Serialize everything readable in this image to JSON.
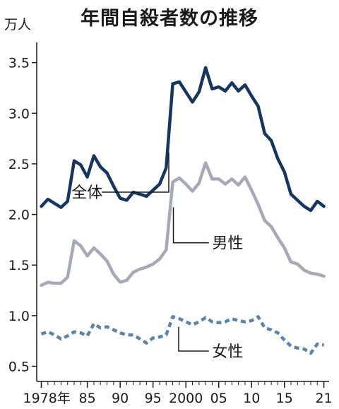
{
  "chart_data": {
    "type": "line",
    "title": "年間自殺者数の推移",
    "ylabel": "万人",
    "xlabel": "",
    "ylim": [
      0.35,
      3.7
    ],
    "xlim": [
      1977.3,
      2021.8
    ],
    "y_ticks": [
      0.5,
      1.0,
      1.5,
      2.0,
      2.5,
      3.0,
      3.5
    ],
    "y_tick_labels": [
      "0.5",
      "1.0",
      "1.5",
      "2.0",
      "2.5",
      "3.0",
      "3.5"
    ],
    "x_ticks": [
      1978,
      1985,
      1990,
      1995,
      2000,
      2005,
      2010,
      2015,
      2021
    ],
    "x_tick_labels": [
      "1978年",
      "85",
      "90",
      "95",
      "2000",
      "05",
      "10",
      "15",
      "21"
    ],
    "x": [
      1978,
      1979,
      1980,
      1981,
      1982,
      1983,
      1984,
      1985,
      1986,
      1987,
      1988,
      1989,
      1990,
      1991,
      1992,
      1993,
      1994,
      1995,
      1996,
      1997,
      1998,
      1999,
      2000,
      2001,
      2002,
      2003,
      2004,
      2005,
      2006,
      2007,
      2008,
      2009,
      2010,
      2011,
      2012,
      2013,
      2014,
      2015,
      2016,
      2017,
      2018,
      2019,
      2020,
      2021
    ],
    "series": [
      {
        "name": "全体",
        "color": "#16365f",
        "style": "solid",
        "values": [
          2.08,
          2.15,
          2.11,
          2.07,
          2.13,
          2.53,
          2.49,
          2.37,
          2.58,
          2.47,
          2.41,
          2.28,
          2.16,
          2.14,
          2.22,
          2.2,
          2.18,
          2.24,
          2.3,
          2.46,
          3.29,
          3.31,
          3.21,
          3.11,
          3.21,
          3.45,
          3.24,
          3.26,
          3.22,
          3.3,
          3.22,
          3.28,
          3.17,
          3.07,
          2.8,
          2.73,
          2.55,
          2.42,
          2.2,
          2.14,
          2.08,
          2.04,
          2.13,
          2.08
        ]
      },
      {
        "name": "男性",
        "color": "#a8a9b8",
        "style": "solid",
        "values": [
          1.3,
          1.33,
          1.32,
          1.32,
          1.38,
          1.74,
          1.69,
          1.59,
          1.67,
          1.61,
          1.54,
          1.41,
          1.33,
          1.35,
          1.43,
          1.46,
          1.48,
          1.51,
          1.56,
          1.65,
          2.32,
          2.36,
          2.3,
          2.23,
          2.31,
          2.51,
          2.35,
          2.35,
          2.3,
          2.35,
          2.29,
          2.37,
          2.24,
          2.1,
          1.94,
          1.88,
          1.77,
          1.67,
          1.53,
          1.51,
          1.45,
          1.42,
          1.41,
          1.39
        ]
      },
      {
        "name": "女性",
        "color": "#5b84a7",
        "style": "dashed",
        "values": [
          0.82,
          0.84,
          0.81,
          0.77,
          0.8,
          0.84,
          0.83,
          0.8,
          0.92,
          0.88,
          0.89,
          0.86,
          0.83,
          0.81,
          0.81,
          0.77,
          0.73,
          0.78,
          0.79,
          0.81,
          0.99,
          0.97,
          0.94,
          0.91,
          0.94,
          0.98,
          0.94,
          0.93,
          0.94,
          0.97,
          0.95,
          0.94,
          0.95,
          0.99,
          0.88,
          0.86,
          0.83,
          0.76,
          0.7,
          0.68,
          0.67,
          0.63,
          0.72,
          0.71
        ]
      }
    ],
    "annotations": [
      {
        "text": "全体",
        "series": "全体"
      },
      {
        "text": "男性",
        "series": "男性"
      },
      {
        "text": "女性",
        "series": "女性"
      }
    ],
    "grid": false,
    "legend": "none"
  }
}
